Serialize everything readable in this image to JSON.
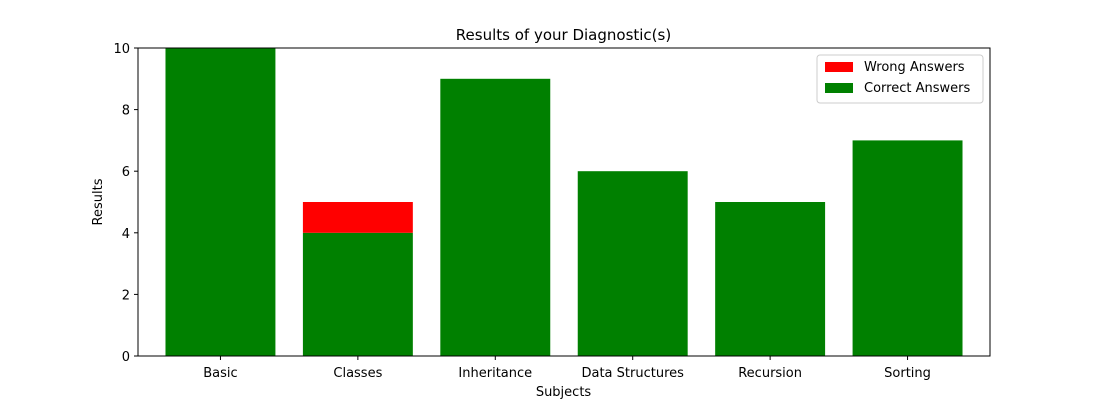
{
  "chart_data": {
    "type": "bar",
    "stacked": true,
    "title": "Results of your Diagnostic(s)",
    "xlabel": "Subjects",
    "ylabel": "Results",
    "categories": [
      "Basic",
      "Classes",
      "Inheritance",
      "Data Structures",
      "Recursion",
      "Sorting"
    ],
    "series": [
      {
        "name": "Correct Answers",
        "color": "#008000",
        "values": [
          10,
          4,
          9,
          6,
          5,
          7
        ]
      },
      {
        "name": "Wrong Answers",
        "color": "#ff0000",
        "values": [
          0,
          1,
          0,
          0,
          0,
          0
        ]
      }
    ],
    "ylim": [
      0,
      10
    ],
    "yticks": [
      0,
      2,
      4,
      6,
      8,
      10
    ],
    "grid": false,
    "legend": {
      "position": "top-right",
      "entries": [
        {
          "label": "Wrong Answers",
          "color": "#ff0000"
        },
        {
          "label": "Correct Answers",
          "color": "#008000"
        }
      ]
    }
  }
}
